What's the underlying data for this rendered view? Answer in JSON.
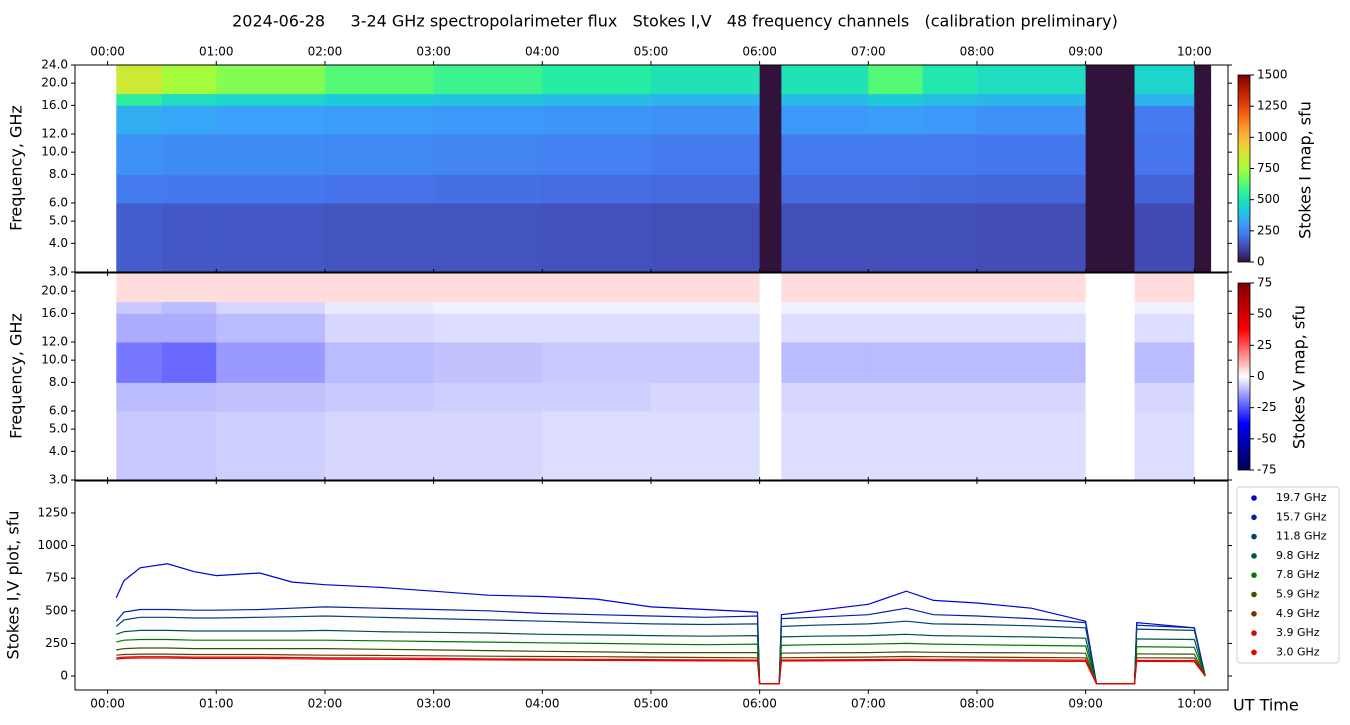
{
  "chart_data": [
    {
      "type": "heatmap",
      "title": "2024-06-28     3-24 GHz spectropolarimeter flux   Stokes I,V   48 frequency channels   (calibration preliminary)",
      "y_label": "Frequency, GHz",
      "colorbar_label": "Stokes I map, sfu",
      "colormap": "turbo",
      "log_y": true,
      "xlim": [
        -0.3,
        10.31
      ],
      "ylim": [
        3,
        24
      ],
      "xticks": [
        {
          "value": 0,
          "label": "00:00"
        },
        {
          "value": 1,
          "label": "01:00"
        },
        {
          "value": 2,
          "label": "02:00"
        },
        {
          "value": 3,
          "label": "03:00"
        },
        {
          "value": 4,
          "label": "04:00"
        },
        {
          "value": 5,
          "label": "05:00"
        },
        {
          "value": 6,
          "label": "06:00"
        },
        {
          "value": 7,
          "label": "07:00"
        },
        {
          "value": 8,
          "label": "08:00"
        },
        {
          "value": 9,
          "label": "09:00"
        },
        {
          "value": 10,
          "label": "10:00"
        }
      ],
      "yticks": [
        {
          "value": 3,
          "label": "3.0"
        },
        {
          "value": 4,
          "label": "4.0"
        },
        {
          "value": 5,
          "label": "5.0"
        },
        {
          "value": 6,
          "label": "6.0"
        },
        {
          "value": 8,
          "label": "8.0"
        },
        {
          "value": 10,
          "label": "10.0"
        },
        {
          "value": 12,
          "label": "12.0"
        },
        {
          "value": 16,
          "label": "16.0"
        },
        {
          "value": 20,
          "label": "20.0"
        },
        {
          "value": 24,
          "label": "24.0"
        }
      ],
      "clim": [
        0,
        1500
      ],
      "cticks": [
        0,
        250,
        500,
        750,
        1000,
        1250,
        1500
      ],
      "x_edges": [
        0.08,
        0.5,
        1.0,
        2.0,
        3.0,
        4.0,
        5.0,
        6.0,
        6.2,
        7.0,
        7.5,
        8.0,
        9.0,
        9.45,
        10.0,
        10.15
      ],
      "y_edges": [
        3,
        6,
        8,
        12,
        16,
        18,
        24
      ],
      "values": [
        [
          160,
          230,
          280,
          350,
          550,
          850
        ],
        [
          150,
          220,
          270,
          330,
          480,
          750
        ],
        [
          150,
          220,
          270,
          320,
          450,
          700
        ],
        [
          140,
          210,
          260,
          310,
          420,
          620
        ],
        [
          140,
          200,
          250,
          300,
          400,
          580
        ],
        [
          135,
          195,
          240,
          290,
          380,
          540
        ],
        [
          130,
          190,
          230,
          280,
          360,
          500
        ],
        [
          0,
          0,
          0,
          0,
          0,
          0
        ],
        [
          130,
          190,
          230,
          300,
          380,
          500
        ],
        [
          130,
          190,
          230,
          310,
          420,
          620
        ],
        [
          130,
          185,
          225,
          300,
          390,
          520
        ],
        [
          125,
          180,
          220,
          280,
          370,
          480
        ],
        [
          0,
          0,
          0,
          0,
          0,
          0
        ],
        [
          120,
          175,
          215,
          230,
          360,
          450
        ],
        [
          0,
          0,
          0,
          0,
          0,
          0
        ]
      ]
    },
    {
      "type": "heatmap",
      "y_label": "Frequency, GHz",
      "colorbar_label": "Stokes V map, sfu",
      "colormap": "seismic",
      "log_y": true,
      "xlim": [
        -0.3,
        10.31
      ],
      "ylim": [
        3,
        24
      ],
      "yticks": [
        {
          "value": 3,
          "label": "3.0"
        },
        {
          "value": 4,
          "label": "4.0"
        },
        {
          "value": 5,
          "label": "5.0"
        },
        {
          "value": 6,
          "label": "6.0"
        },
        {
          "value": 8,
          "label": "8.0"
        },
        {
          "value": 10,
          "label": "10.0"
        },
        {
          "value": 12,
          "label": "12.0"
        },
        {
          "value": 16,
          "label": "16.0"
        },
        {
          "value": 20,
          "label": "20.0"
        }
      ],
      "clim": [
        -75,
        75
      ],
      "cticks": [
        -75,
        -50,
        -25,
        0,
        25,
        50,
        75
      ],
      "x_edges": [
        0.08,
        0.5,
        1.0,
        2.0,
        3.0,
        4.0,
        5.0,
        6.0,
        6.2,
        7.0,
        7.5,
        8.0,
        9.0,
        9.45,
        10.0,
        10.15
      ],
      "y_edges": [
        3,
        6,
        8,
        12,
        16,
        18,
        24
      ],
      "values": [
        [
          -8,
          -10,
          -20,
          -12,
          -8,
          5
        ],
        [
          -8,
          -10,
          -22,
          -12,
          -10,
          5
        ],
        [
          -7,
          -9,
          -15,
          -10,
          -6,
          5
        ],
        [
          -6,
          -8,
          -10,
          -6,
          -3,
          5
        ],
        [
          -6,
          -7,
          -9,
          -5,
          -2,
          5
        ],
        [
          -5,
          -7,
          -8,
          -5,
          -2,
          5
        ],
        [
          -5,
          -6,
          -8,
          -5,
          -2,
          5
        ],
        [
          0,
          0,
          0,
          0,
          0,
          0
        ],
        [
          -5,
          -6,
          -10,
          -5,
          -2,
          5
        ],
        [
          -5,
          -6,
          -10,
          -5,
          -2,
          5
        ],
        [
          -5,
          -6,
          -10,
          -5,
          -2,
          5
        ],
        [
          -5,
          -6,
          -10,
          -5,
          -2,
          5
        ],
        [
          0,
          0,
          0,
          0,
          0,
          0
        ],
        [
          -5,
          -6,
          -10,
          -5,
          -2,
          5
        ],
        [
          0,
          0,
          0,
          0,
          0,
          0
        ]
      ]
    },
    {
      "type": "line",
      "y_label": "Stokes I,V plot, sfu",
      "x_label": "UT Time",
      "xlim": [
        -0.3,
        10.31
      ],
      "ylim": [
        -107,
        1495
      ],
      "yticks": [
        0,
        250,
        500,
        750,
        1000,
        1250
      ],
      "xticks": [
        {
          "value": 0,
          "label": "00:00"
        },
        {
          "value": 1,
          "label": "01:00"
        },
        {
          "value": 2,
          "label": "02:00"
        },
        {
          "value": 3,
          "label": "03:00"
        },
        {
          "value": 4,
          "label": "04:00"
        },
        {
          "value": 5,
          "label": "05:00"
        },
        {
          "value": 6,
          "label": "06:00"
        },
        {
          "value": 7,
          "label": "07:00"
        },
        {
          "value": 8,
          "label": "08:00"
        },
        {
          "value": 9,
          "label": "09:00"
        },
        {
          "value": 10,
          "label": "10:00"
        }
      ],
      "x": [
        0.08,
        0.15,
        0.3,
        0.55,
        0.8,
        1.0,
        1.4,
        1.7,
        2.0,
        2.5,
        3.0,
        3.5,
        4.0,
        4.5,
        5.0,
        5.5,
        5.98,
        6.0,
        6.18,
        6.2,
        6.5,
        7.0,
        7.35,
        7.6,
        8.0,
        8.5,
        9.0,
        9.1,
        9.45,
        9.47,
        10.0,
        10.1
      ],
      "series": [
        {
          "name": "19.7 GHz",
          "color": "#0000dd",
          "values": [
            600,
            730,
            830,
            860,
            800,
            770,
            790,
            720,
            700,
            680,
            650,
            620,
            610,
            590,
            530,
            510,
            490,
            -60,
            -60,
            470,
            500,
            550,
            650,
            580,
            560,
            520,
            420,
            -60,
            -60,
            410,
            370,
            0
          ]
        },
        {
          "name": "15.7 GHz",
          "color": "#0022aa",
          "values": [
            420,
            490,
            510,
            510,
            505,
            505,
            510,
            520,
            530,
            520,
            510,
            500,
            480,
            470,
            460,
            450,
            460,
            -60,
            -60,
            440,
            450,
            470,
            520,
            470,
            460,
            440,
            410,
            -60,
            -60,
            390,
            370,
            0
          ]
        },
        {
          "name": "11.8 GHz",
          "color": "#004477",
          "values": [
            380,
            430,
            450,
            450,
            445,
            445,
            450,
            455,
            460,
            450,
            440,
            430,
            420,
            410,
            400,
            395,
            400,
            -60,
            -60,
            380,
            390,
            400,
            420,
            400,
            395,
            385,
            370,
            -60,
            -60,
            360,
            350,
            0
          ]
        },
        {
          "name": "9.8 GHz",
          "color": "#005544",
          "values": [
            320,
            340,
            350,
            350,
            345,
            345,
            345,
            345,
            350,
            340,
            335,
            330,
            320,
            315,
            310,
            305,
            310,
            -60,
            -60,
            300,
            305,
            310,
            320,
            310,
            305,
            300,
            290,
            -60,
            -60,
            285,
            280,
            0
          ]
        },
        {
          "name": "7.8 GHz",
          "color": "#007700",
          "values": [
            260,
            275,
            280,
            280,
            275,
            275,
            275,
            275,
            275,
            270,
            265,
            260,
            255,
            250,
            245,
            240,
            245,
            -60,
            -60,
            235,
            240,
            245,
            250,
            245,
            240,
            235,
            230,
            -60,
            -60,
            225,
            220,
            0
          ]
        },
        {
          "name": "5.9 GHz",
          "color": "#335500",
          "values": [
            200,
            210,
            215,
            215,
            210,
            210,
            210,
            210,
            210,
            205,
            200,
            195,
            190,
            185,
            180,
            180,
            180,
            -60,
            -60,
            175,
            178,
            180,
            185,
            182,
            180,
            178,
            175,
            -60,
            -60,
            170,
            168,
            0
          ]
        },
        {
          "name": "4.9 GHz",
          "color": "#773300",
          "values": [
            160,
            165,
            168,
            168,
            165,
            165,
            165,
            162,
            160,
            158,
            155,
            152,
            150,
            148,
            145,
            142,
            140,
            -60,
            -60,
            140,
            142,
            145,
            150,
            148,
            145,
            142,
            140,
            -60,
            -60,
            140,
            138,
            0
          ]
        },
        {
          "name": "3.9 GHz",
          "color": "#cc1100",
          "values": [
            140,
            145,
            148,
            148,
            145,
            145,
            145,
            142,
            140,
            138,
            135,
            132,
            130,
            128,
            126,
            124,
            122,
            -60,
            -60,
            122,
            124,
            126,
            130,
            128,
            126,
            124,
            122,
            -60,
            -60,
            120,
            118,
            0
          ]
        },
        {
          "name": "3.0 GHz",
          "color": "#ee0000",
          "values": [
            130,
            135,
            138,
            138,
            135,
            135,
            135,
            132,
            130,
            128,
            126,
            124,
            122,
            120,
            118,
            116,
            115,
            -60,
            -60,
            115,
            116,
            118,
            120,
            118,
            116,
            114,
            112,
            -60,
            -60,
            112,
            110,
            0
          ]
        }
      ]
    }
  ]
}
